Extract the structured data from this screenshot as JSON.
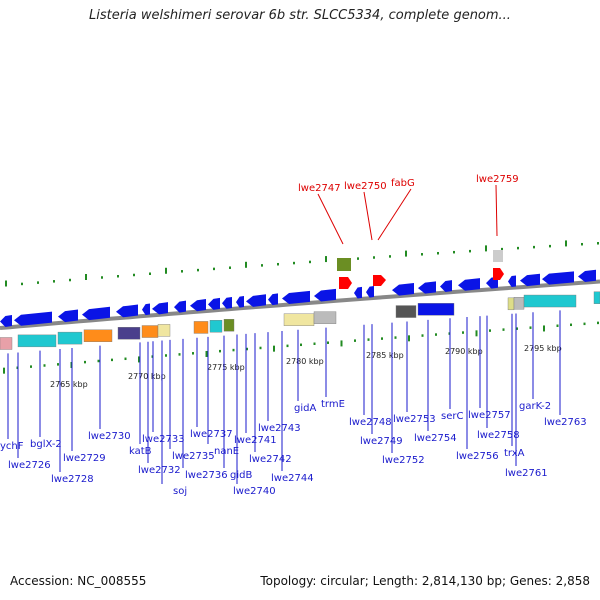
{
  "title": "Listeria welshimeri serovar 6b str. SLCC5334, complete genom...",
  "footer": {
    "accession_label": "Accession:",
    "accession": "NC_008555",
    "topology_label": "Topology:",
    "topology": "circular",
    "length_label": "Length:",
    "length": "2,814,130 bp",
    "genes_label": "Genes:",
    "genes": "2,858"
  },
  "ruler": {
    "unit": "kbp",
    "ticks": [
      {
        "label": "2765 kbp",
        "kbp": 2765
      },
      {
        "label": "2770 kbp",
        "kbp": 2770
      },
      {
        "label": "2775 kbp",
        "kbp": 2775
      },
      {
        "label": "2780 kbp",
        "kbp": 2780
      },
      {
        "label": "2785 kbp",
        "kbp": 2785
      },
      {
        "label": "2790 kbp",
        "kbp": 2790
      },
      {
        "label": "2795 kbp",
        "kbp": 2795
      }
    ]
  },
  "colors": {
    "gene_blue": "#0a14e6",
    "gene_red": "#ff0000",
    "highlight_label": "#dd0000",
    "label_blue": "#1a1acc",
    "backbone": "#888888",
    "tick_green": "#228b22"
  },
  "highlighted_genes": [
    {
      "name": "lwe2747"
    },
    {
      "name": "lwe2750"
    },
    {
      "name": "fabG"
    },
    {
      "name": "lwe2759"
    }
  ],
  "gene_labels": [
    {
      "name": "ychF"
    },
    {
      "name": "lwe2726"
    },
    {
      "name": "bglX-2"
    },
    {
      "name": "lwe2728"
    },
    {
      "name": "lwe2729"
    },
    {
      "name": "lwe2730"
    },
    {
      "name": "katB"
    },
    {
      "name": "lwe2732"
    },
    {
      "name": "lwe2733"
    },
    {
      "name": "soj"
    },
    {
      "name": "lwe2735"
    },
    {
      "name": "lwe2736"
    },
    {
      "name": "lwe2737"
    },
    {
      "name": "nanE"
    },
    {
      "name": "gidB"
    },
    {
      "name": "lwe2740"
    },
    {
      "name": "lwe2741"
    },
    {
      "name": "lwe2742"
    },
    {
      "name": "lwe2743"
    },
    {
      "name": "lwe2744"
    },
    {
      "name": "gidA"
    },
    {
      "name": "trmE"
    },
    {
      "name": "lwe2748"
    },
    {
      "name": "lwe2749"
    },
    {
      "name": "lwe2752"
    },
    {
      "name": "lwe2753"
    },
    {
      "name": "lwe2754"
    },
    {
      "name": "serC"
    },
    {
      "name": "lwe2756"
    },
    {
      "name": "lwe2757"
    },
    {
      "name": "lwe2758"
    },
    {
      "name": "trxA"
    },
    {
      "name": "lwe2761"
    },
    {
      "name": "garK-2"
    },
    {
      "name": "lwe2763"
    }
  ]
}
